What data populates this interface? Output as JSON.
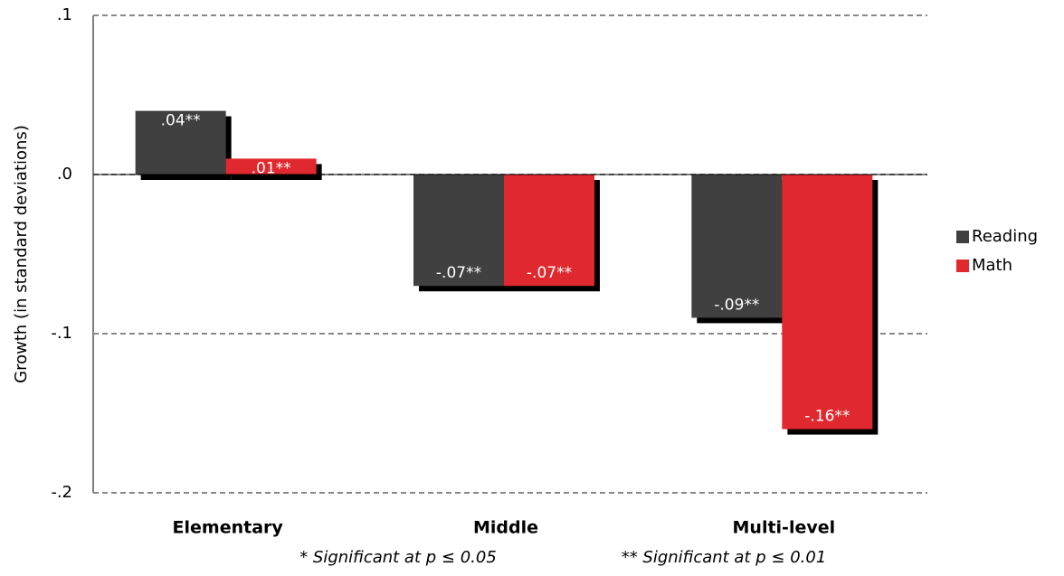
{
  "chart_data": {
    "type": "bar",
    "y_label": "Growth (in standard deviations)",
    "categories": [
      "Elementary",
      "Middle",
      "Multi-level"
    ],
    "series": [
      {
        "name": "Reading",
        "color": "#404040",
        "values": [
          0.04,
          -0.07,
          -0.09
        ],
        "value_labels": [
          ".04**",
          "-.07**",
          "-.09**"
        ]
      },
      {
        "name": "Math",
        "color": "#e0292f",
        "values": [
          0.01,
          -0.07,
          -0.16
        ],
        "value_labels": [
          ".01**",
          "-.07**",
          "-.16**"
        ]
      }
    ],
    "ylim": [
      -0.2,
      0.1
    ],
    "yticks": [
      {
        "value": -0.2,
        "label": "-.2"
      },
      {
        "value": -0.1,
        "label": "-.1"
      },
      {
        "value": 0,
        "label": ".0"
      },
      {
        "value": 0.1,
        "label": ".1"
      }
    ],
    "grid": true,
    "legend": "right",
    "notes": [
      "* Significant at p ≤ 0.05",
      "** Significant at p ≤ 0.01"
    ]
  }
}
